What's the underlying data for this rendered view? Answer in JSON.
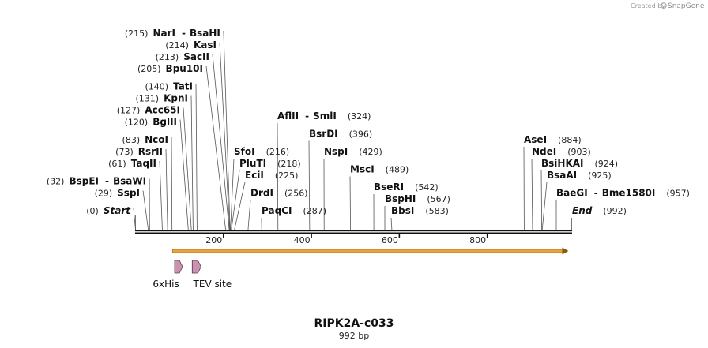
{
  "logo": {
    "prefix": "Created by",
    "name": "SnapGene"
  },
  "title": "RIPK2A-c033",
  "subtitle": "992 bp",
  "sequence_length": 992,
  "ticks": [
    {
      "value": 200,
      "label": "200"
    },
    {
      "value": 400,
      "label": "400"
    },
    {
      "value": 600,
      "label": "600"
    },
    {
      "value": 800,
      "label": "800"
    }
  ],
  "sites": [
    {
      "id": "narI",
      "pos": 215,
      "pos_label": "(215)",
      "name": "NarI",
      "partner": "BsaHI",
      "row": 0,
      "side": "left"
    },
    {
      "id": "kasI",
      "pos": 214,
      "pos_label": "(214)",
      "name": "KasI",
      "row": 1,
      "side": "left"
    },
    {
      "id": "sacII",
      "pos": 213,
      "pos_label": "(213)",
      "name": "SacII",
      "row": 2,
      "side": "left"
    },
    {
      "id": "bpu10I",
      "pos": 205,
      "pos_label": "(205)",
      "name": "Bpu10I",
      "row": 3,
      "side": "left"
    },
    {
      "id": "tatI",
      "pos": 140,
      "pos_label": "(140)",
      "name": "TatI",
      "row": 4.5,
      "side": "left"
    },
    {
      "id": "kpnI",
      "pos": 131,
      "pos_label": "(131)",
      "name": "KpnI",
      "row": 5.5,
      "side": "left"
    },
    {
      "id": "acc65I",
      "pos": 127,
      "pos_label": "(127)",
      "name": "Acc65I",
      "row": 6.5,
      "side": "left"
    },
    {
      "id": "bglII",
      "pos": 120,
      "pos_label": "(120)",
      "name": "BglII",
      "row": 7.5,
      "side": "left"
    },
    {
      "id": "ncoI",
      "pos": 83,
      "pos_label": "(83)",
      "name": "NcoI",
      "row": 9,
      "side": "left"
    },
    {
      "id": "rsrII",
      "pos": 73,
      "pos_label": "(73)",
      "name": "RsrII",
      "row": 10,
      "side": "left"
    },
    {
      "id": "taqII",
      "pos": 61,
      "pos_label": "(61)",
      "name": "TaqII",
      "row": 11,
      "side": "left"
    },
    {
      "id": "bspEI",
      "pos": 32,
      "pos_label": "(32)",
      "name": "BspEI",
      "partner": "BsaWI",
      "row": 12.5,
      "side": "left"
    },
    {
      "id": "sspI",
      "pos": 29,
      "pos_label": "(29)",
      "name": "SspI",
      "row": 13.5,
      "side": "left"
    },
    {
      "id": "start",
      "pos": 0,
      "pos_label": "(0)",
      "name": "Start",
      "row": 15,
      "side": "left",
      "italic": true
    },
    {
      "id": "aflII",
      "pos": 324,
      "pos_label": "(324)",
      "name": "AflII",
      "partner": "SmlI",
      "row": 7,
      "side": "right"
    },
    {
      "id": "bsrDI",
      "pos": 396,
      "pos_label": "(396)",
      "name": "BsrDI",
      "row": 8.5,
      "side": "right"
    },
    {
      "id": "sfoI",
      "pos": 216,
      "pos_label": "(216)",
      "name": "SfoI",
      "row": 10,
      "side": "right"
    },
    {
      "id": "nspI",
      "pos": 429,
      "pos_label": "(429)",
      "name": "NspI",
      "row": 10,
      "side": "right"
    },
    {
      "id": "pluTI",
      "pos": 218,
      "pos_label": "(218)",
      "name": "PluTI",
      "row": 11,
      "side": "right"
    },
    {
      "id": "mscI",
      "pos": 489,
      "pos_label": "(489)",
      "name": "MscI",
      "row": 11.5,
      "side": "right"
    },
    {
      "id": "eciI",
      "pos": 225,
      "pos_label": "(225)",
      "name": "EciI",
      "row": 12,
      "side": "right"
    },
    {
      "id": "bseRI",
      "pos": 542,
      "pos_label": "(542)",
      "name": "BseRI",
      "row": 13,
      "side": "right"
    },
    {
      "id": "drdI",
      "pos": 256,
      "pos_label": "(256)",
      "name": "DrdI",
      "row": 13.5,
      "side": "right"
    },
    {
      "id": "bspHI",
      "pos": 567,
      "pos_label": "(567)",
      "name": "BspHI",
      "row": 14,
      "side": "right"
    },
    {
      "id": "bbsI",
      "pos": 583,
      "pos_label": "(583)",
      "name": "BbsI",
      "row": 15,
      "side": "right"
    },
    {
      "id": "paqCI",
      "pos": 287,
      "pos_label": "(287)",
      "name": "PaqCI",
      "row": 15,
      "side": "right"
    },
    {
      "id": "aseI",
      "pos": 884,
      "pos_label": "(884)",
      "name": "AseI",
      "row": 9,
      "side": "right"
    },
    {
      "id": "ndeI",
      "pos": 903,
      "pos_label": "(903)",
      "name": "NdeI",
      "row": 10,
      "side": "right"
    },
    {
      "id": "bsiHKAI",
      "pos": 924,
      "pos_label": "(924)",
      "name": "BsiHKAI",
      "row": 11,
      "side": "right"
    },
    {
      "id": "bsaAI",
      "pos": 925,
      "pos_label": "(925)",
      "name": "BsaAI",
      "row": 12,
      "side": "right"
    },
    {
      "id": "baeGI",
      "pos": 957,
      "pos_label": "(957)",
      "name": "BaeGI",
      "partner": "Bme1580I",
      "row": 13.5,
      "side": "right"
    },
    {
      "id": "end",
      "pos": 992,
      "pos_label": "(992)",
      "name": "End",
      "row": 15,
      "side": "right",
      "italic": true
    }
  ],
  "orf": {
    "start": 83,
    "end": 992,
    "color": "#e8a33a"
  },
  "features": [
    {
      "id": "6xhis",
      "label": "6xHis",
      "start": 89,
      "end": 107,
      "color": "#c994b0"
    },
    {
      "id": "tev",
      "label": "TEV site",
      "start": 129,
      "end": 149,
      "color": "#c994b0"
    }
  ]
}
